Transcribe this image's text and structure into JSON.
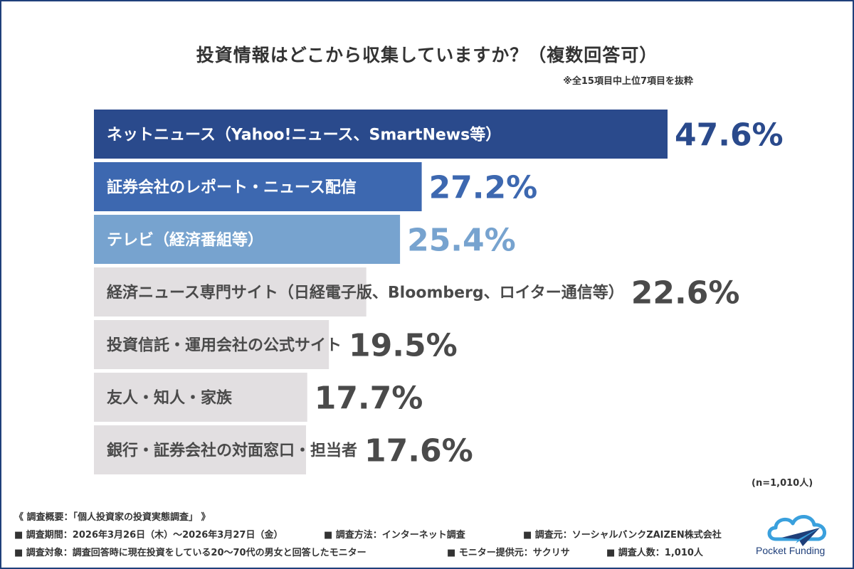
{
  "title": "投資情報はどこから収集していますか？（複数回答可）",
  "note": "※全15項目中上位7項目を抜粋",
  "sample_size": "(n=1,010人)",
  "colors": {
    "top1": "#2a4a8c",
    "top2": "#3d68b0",
    "top3": "#77a3cf",
    "rest": "#e2dfe1",
    "value_top1": "#2a4a8c",
    "value_top2": "#3d68b0",
    "value_top3": "#77a3cf",
    "value_rest": "#4a4a4a",
    "label_on_dark": "#ffffff",
    "label_on_light": "#4a4a4a"
  },
  "chart_data": {
    "type": "bar",
    "orientation": "horizontal",
    "title": "投資情報はどこから収集していますか？（複数回答可）",
    "categories": [
      "ネットニュース（Yahoo!ニュース、SmartNews等）",
      "証券会社のレポート・ニュース配信",
      "テレビ（経済番組等）",
      "経済ニュース専門サイト（日経電子版、Bloomberg、ロイター通信等）",
      "投資信託・運用会社の公式サイト",
      "友人・知人・家族",
      "銀行・証券会社の対面窓口・担当者"
    ],
    "values": [
      47.6,
      27.2,
      25.4,
      22.6,
      19.5,
      17.7,
      17.6
    ],
    "value_labels": [
      "47.6%",
      "27.2%",
      "25.4%",
      "22.6%",
      "19.5%",
      "17.7%",
      "17.6%"
    ],
    "unit": "%",
    "xlim": [
      0,
      60
    ]
  },
  "survey": {
    "heading": "《 調査概要：「個人投資家の投資実態調査」 》",
    "period": "■ 調査期間：2026年3月26日（木）〜2026年3月27日（金）",
    "method": "■ 調査方法：インターネット調査",
    "source": "■ 調査元：ソーシャルバンクZAIZEN株式会社",
    "target": "■ 調査対象：調査回答時に現在投資をしている20〜70代の男女と回答したモニター",
    "provider": "■ モニター提供元：サクリサ",
    "count": "■ 調査人数：1,010人"
  },
  "logo": {
    "text": "Pocket Funding",
    "icon": "cloud-paper-plane-icon"
  }
}
